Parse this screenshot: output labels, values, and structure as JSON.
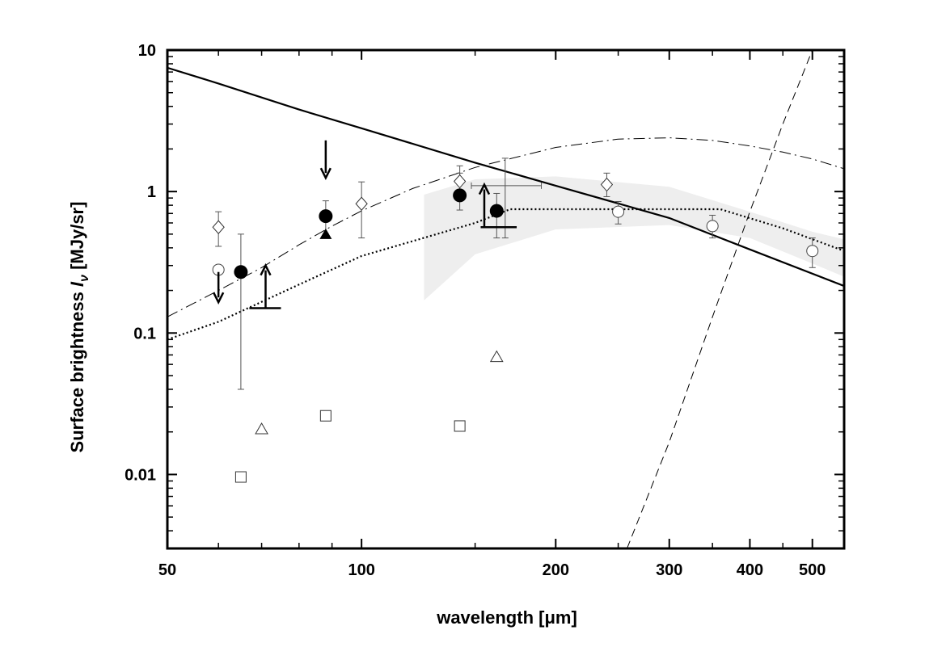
{
  "chart_data": {
    "type": "scatter",
    "title": "",
    "xlabel": "wavelength [μm]",
    "ylabel_prefix": "Surface brightness ",
    "ylabel_symbol": "I",
    "ylabel_subscript": "ν",
    "ylabel_suffix": " [MJy/sr]",
    "x_scale": "log",
    "y_scale": "log",
    "xlim": [
      50,
      560
    ],
    "ylim": [
      0.003,
      10
    ],
    "grid": false,
    "x_ticks": [
      {
        "value": 50,
        "label": "50"
      },
      {
        "value": 100,
        "label": "100"
      },
      {
        "value": 200,
        "label": "200"
      },
      {
        "value": 300,
        "label": "300"
      },
      {
        "value": 400,
        "label": "400"
      },
      {
        "value": 500,
        "label": "500"
      }
    ],
    "x_minor_ticks": [
      60,
      70,
      80,
      90,
      150,
      250,
      350,
      450
    ],
    "y_ticks": [
      {
        "value": 0.01,
        "label": "0.01"
      },
      {
        "value": 0.1,
        "label": "0.1"
      },
      {
        "value": 1,
        "label": "1"
      },
      {
        "value": 10,
        "label": "10"
      }
    ],
    "y_minor_ticks": [
      0.004,
      0.005,
      0.006,
      0.007,
      0.008,
      0.009,
      0.02,
      0.03,
      0.04,
      0.05,
      0.06,
      0.07,
      0.08,
      0.09,
      0.2,
      0.3,
      0.4,
      0.5,
      0.6,
      0.7,
      0.8,
      0.9,
      2,
      3,
      4,
      5,
      6,
      7,
      8,
      9
    ],
    "shaded_band": {
      "upper": [
        [
          125,
          0.95
        ],
        [
          150,
          1.22
        ],
        [
          200,
          1.28
        ],
        [
          300,
          1.08
        ],
        [
          400,
          0.72
        ],
        [
          500,
          0.52
        ],
        [
          560,
          0.46
        ]
      ],
      "lower": [
        [
          125,
          0.17
        ],
        [
          150,
          0.36
        ],
        [
          200,
          0.54
        ],
        [
          300,
          0.58
        ],
        [
          400,
          0.47
        ],
        [
          500,
          0.31
        ],
        [
          560,
          0.25
        ]
      ]
    },
    "curves": [
      {
        "name": "solid",
        "style": "solid",
        "points": [
          [
            50,
            7.5
          ],
          [
            60,
            5.8
          ],
          [
            80,
            3.8
          ],
          [
            100,
            2.8
          ],
          [
            150,
            1.6
          ],
          [
            200,
            1.1
          ],
          [
            300,
            0.65
          ],
          [
            400,
            0.39
          ],
          [
            560,
            0.215
          ]
        ]
      },
      {
        "name": "dash-dot",
        "style": "dashdot",
        "points": [
          [
            50,
            0.13
          ],
          [
            60,
            0.2
          ],
          [
            70,
            0.29
          ],
          [
            80,
            0.42
          ],
          [
            90,
            0.57
          ],
          [
            100,
            0.73
          ],
          [
            120,
            1.05
          ],
          [
            150,
            1.48
          ],
          [
            200,
            2.05
          ],
          [
            250,
            2.35
          ],
          [
            300,
            2.4
          ],
          [
            350,
            2.3
          ],
          [
            400,
            2.1
          ],
          [
            450,
            1.9
          ],
          [
            500,
            1.7
          ],
          [
            560,
            1.45
          ]
        ]
      },
      {
        "name": "dotted",
        "style": "dotted",
        "points": [
          [
            50,
            0.09
          ],
          [
            60,
            0.12
          ],
          [
            80,
            0.22
          ],
          [
            100,
            0.35
          ],
          [
            150,
            0.6
          ],
          [
            170,
            0.75
          ],
          [
            360,
            0.75
          ],
          [
            450,
            0.55
          ],
          [
            560,
            0.38
          ]
        ]
      },
      {
        "name": "dashed",
        "style": "dashed",
        "points": [
          [
            258,
            0.003
          ],
          [
            300,
            0.017
          ],
          [
            350,
            0.13
          ],
          [
            400,
            0.72
          ],
          [
            450,
            3.0
          ],
          [
            500,
            10.0
          ]
        ]
      }
    ],
    "series": [
      {
        "name": "filled circles",
        "marker": "filled-circle",
        "points": [
          [
            65,
            0.27
          ],
          [
            88,
            0.67
          ],
          [
            142,
            0.94
          ],
          [
            162,
            0.73
          ]
        ]
      },
      {
        "name": "filled triangle",
        "marker": "filled-triangle",
        "points": [
          [
            88,
            0.5
          ]
        ]
      },
      {
        "name": "open diamonds",
        "marker": "open-diamond",
        "points": [
          [
            60,
            0.56
          ],
          [
            100,
            0.82
          ],
          [
            142,
            1.18
          ],
          [
            240,
            1.12
          ]
        ]
      },
      {
        "name": "open circles",
        "marker": "open-circle",
        "points": [
          [
            60,
            0.28
          ],
          [
            250,
            0.72
          ],
          [
            350,
            0.57
          ],
          [
            500,
            0.38
          ]
        ]
      },
      {
        "name": "open triangles",
        "marker": "open-triangle",
        "points": [
          [
            70,
            0.021
          ],
          [
            162,
            0.068
          ]
        ]
      },
      {
        "name": "open squares",
        "marker": "open-square",
        "points": [
          [
            65,
            0.0096
          ],
          [
            88,
            0.026
          ],
          [
            142,
            0.022
          ]
        ]
      }
    ],
    "error_bars": [
      {
        "x": 60,
        "low": 0.41,
        "high": 0.72
      },
      {
        "x": 65,
        "low": 0.04,
        "high": 0.5
      },
      {
        "x": 88,
        "low": 0.5,
        "high": 0.86
      },
      {
        "x": 100,
        "low": 0.47,
        "high": 1.17
      },
      {
        "x": 142,
        "low": 0.74,
        "high": 1.52
      },
      {
        "x": 142,
        "low": 0.95,
        "high": 1.35
      },
      {
        "x": 162,
        "low": 0.47,
        "high": 0.97
      },
      {
        "x": 167,
        "low": 0.47,
        "high": 1.72,
        "xlow": 148,
        "xhigh": 190
      },
      {
        "x": 240,
        "low": 0.92,
        "high": 1.35
      },
      {
        "x": 250,
        "low": 0.59,
        "high": 0.85
      },
      {
        "x": 350,
        "low": 0.47,
        "high": 0.68
      },
      {
        "x": 500,
        "low": 0.29,
        "high": 0.47
      }
    ],
    "upper_limits": [
      {
        "x": 60,
        "from": 0.27,
        "to": 0.165
      },
      {
        "x": 88,
        "from": 2.3,
        "to": 1.25
      }
    ],
    "lower_limits": [
      {
        "x": 71,
        "from": 0.15,
        "to": 0.3,
        "bar_x1": 67,
        "bar_x2": 75
      },
      {
        "x": 155,
        "from": 0.56,
        "to": 1.12,
        "bar_x1": 153,
        "bar_x2": 174
      }
    ]
  }
}
